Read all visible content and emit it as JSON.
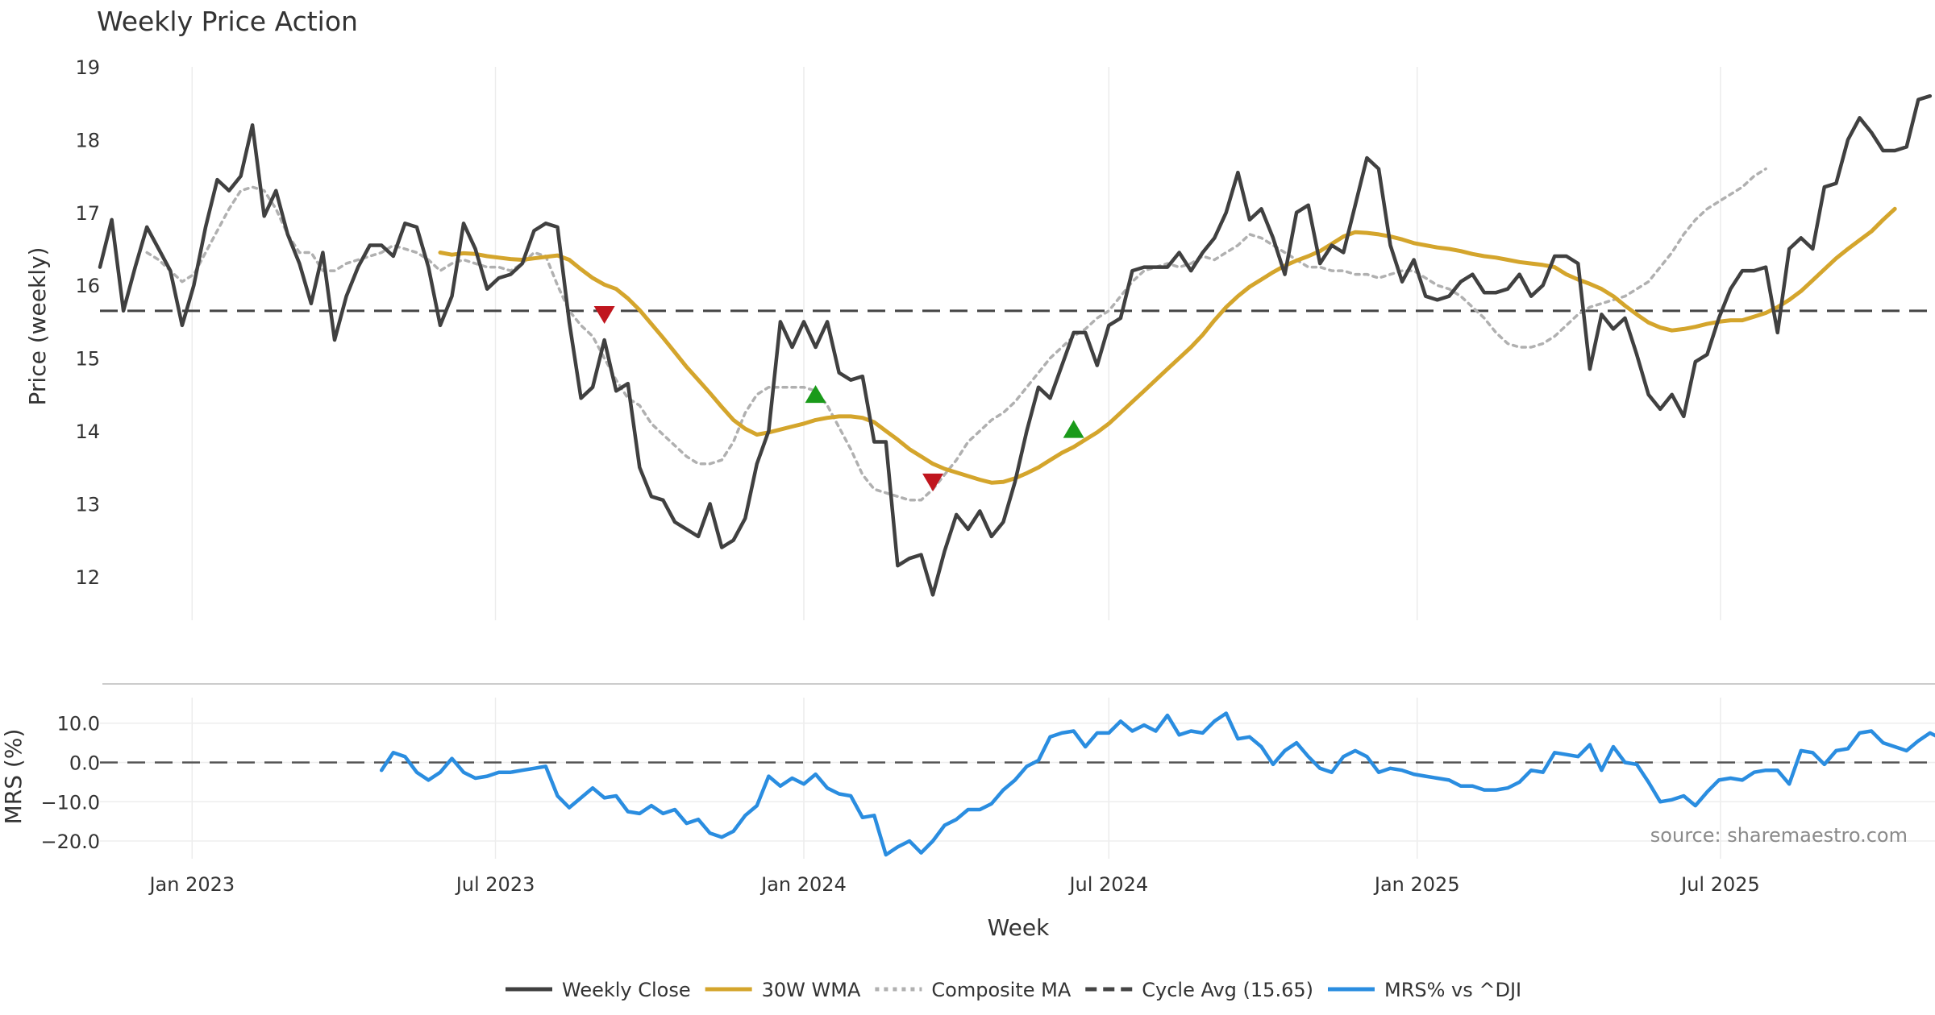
{
  "chart_data": [
    {
      "type": "line",
      "title": "Weekly Price Action",
      "ylabel": "Price (weekly)",
      "ylim": [
        11.4,
        19.0
      ],
      "yticks": [
        12,
        13,
        14,
        15,
        16,
        17,
        18,
        19
      ],
      "x_start": "2022-11-07",
      "x_interval_days": 7,
      "series": [
        {
          "name": "Weekly Close",
          "color": "#404040",
          "style": "solid",
          "values": [
            16.25,
            16.9,
            15.65,
            16.25,
            16.8,
            16.5,
            16.2,
            15.45,
            16.0,
            16.8,
            17.45,
            17.3,
            17.5,
            18.2,
            16.95,
            17.3,
            16.7,
            16.3,
            15.75,
            16.45,
            15.25,
            15.85,
            16.25,
            16.55,
            16.55,
            16.4,
            16.85,
            16.8,
            16.25,
            15.45,
            15.85,
            16.85,
            16.5,
            15.95,
            16.1,
            16.15,
            16.3,
            16.75,
            16.85,
            16.8,
            15.5,
            14.45,
            14.6,
            15.25,
            14.55,
            14.65,
            13.5,
            13.1,
            13.05,
            12.75,
            12.65,
            12.55,
            13.0,
            12.4,
            12.5,
            12.8,
            13.55,
            14.0,
            15.5,
            15.15,
            15.5,
            15.15,
            15.5,
            14.8,
            14.7,
            14.75,
            13.85,
            13.85,
            12.15,
            12.25,
            12.3,
            11.75,
            12.35,
            12.85,
            12.65,
            12.9,
            12.55,
            12.75,
            13.3,
            14.0,
            14.6,
            14.45,
            14.9,
            15.35,
            15.35,
            14.9,
            15.45,
            15.55,
            16.2,
            16.25,
            16.25,
            16.25,
            16.45,
            16.2,
            16.45,
            16.65,
            17.0,
            17.55,
            16.9,
            17.05,
            16.65,
            16.15,
            17.0,
            17.1,
            16.3,
            16.55,
            16.45,
            17.1,
            17.75,
            17.6,
            16.55,
            16.05,
            16.35,
            15.85,
            15.8,
            15.85,
            16.05,
            16.15,
            15.9,
            15.9,
            15.95,
            16.15,
            15.85,
            16.0,
            16.4,
            16.4,
            16.3,
            14.85,
            15.6,
            15.4,
            15.55,
            15.05,
            14.5,
            14.3,
            14.5,
            14.2,
            14.95,
            15.05,
            15.55,
            15.95,
            16.2,
            16.2,
            16.25,
            15.35,
            16.5,
            16.65,
            16.5,
            17.35,
            17.4,
            18.0,
            18.3,
            18.1,
            17.85,
            17.85,
            17.9,
            18.55,
            18.6
          ]
        },
        {
          "name": "30W WMA",
          "color": "#d4a52c",
          "style": "solid",
          "start_index": 29,
          "values": [
            16.45,
            16.42,
            16.44,
            16.43,
            16.4,
            16.38,
            16.36,
            16.35,
            16.37,
            16.39,
            16.41,
            16.35,
            16.22,
            16.1,
            16.01,
            15.95,
            15.82,
            15.66,
            15.47,
            15.28,
            15.08,
            14.88,
            14.7,
            14.52,
            14.33,
            14.15,
            14.03,
            13.95,
            13.98,
            14.02,
            14.06,
            14.1,
            14.15,
            14.18,
            14.2,
            14.2,
            14.18,
            14.12,
            14.0,
            13.88,
            13.75,
            13.65,
            13.55,
            13.48,
            13.43,
            13.38,
            13.33,
            13.29,
            13.3,
            13.35,
            13.42,
            13.5,
            13.6,
            13.7,
            13.78,
            13.88,
            13.98,
            14.1,
            14.25,
            14.4,
            14.55,
            14.7,
            14.85,
            15.0,
            15.15,
            15.32,
            15.52,
            15.7,
            15.85,
            15.98,
            16.08,
            16.18,
            16.27,
            16.34,
            16.4,
            16.47,
            16.57,
            16.67,
            16.73,
            16.72,
            16.7,
            16.67,
            16.63,
            16.58,
            16.55,
            16.52,
            16.5,
            16.47,
            16.43,
            16.4,
            16.38,
            16.35,
            16.32,
            16.3,
            16.28,
            16.25,
            16.15,
            16.08,
            16.02,
            15.95,
            15.85,
            15.72,
            15.6,
            15.49,
            15.42,
            15.38,
            15.4,
            15.43,
            15.47,
            15.5,
            15.52,
            15.52,
            15.57,
            15.62,
            15.7,
            15.8,
            15.92,
            16.07,
            16.22,
            16.37,
            16.5,
            16.62,
            16.74,
            16.9,
            17.05
          ]
        },
        {
          "name": "Composite MA",
          "color": "#b0b0b0",
          "style": "dotted",
          "start_index": 4,
          "values": [
            16.45,
            16.35,
            16.2,
            16.05,
            16.15,
            16.45,
            16.75,
            17.05,
            17.3,
            17.35,
            17.3,
            17.05,
            16.7,
            16.45,
            16.45,
            16.2,
            16.2,
            16.3,
            16.35,
            16.4,
            16.45,
            16.55,
            16.5,
            16.45,
            16.35,
            16.2,
            16.3,
            16.35,
            16.3,
            16.25,
            16.25,
            16.2,
            16.3,
            16.45,
            16.4,
            16.0,
            15.65,
            15.45,
            15.3,
            15.0,
            14.7,
            14.45,
            14.35,
            14.1,
            13.95,
            13.8,
            13.65,
            13.55,
            13.55,
            13.6,
            13.85,
            14.25,
            14.5,
            14.6,
            14.6,
            14.6,
            14.6,
            14.55,
            14.35,
            14.05,
            13.75,
            13.4,
            13.2,
            13.15,
            13.1,
            13.05,
            13.05,
            13.2,
            13.4,
            13.6,
            13.85,
            14.0,
            14.15,
            14.25,
            14.4,
            14.6,
            14.8,
            15.0,
            15.15,
            15.3,
            15.4,
            15.55,
            15.65,
            15.85,
            16.05,
            16.2,
            16.25,
            16.3,
            16.25,
            16.3,
            16.4,
            16.35,
            16.45,
            16.55,
            16.7,
            16.65,
            16.55,
            16.45,
            16.35,
            16.25,
            16.25,
            16.2,
            16.2,
            16.15,
            16.15,
            16.1,
            16.15,
            16.2,
            16.2,
            16.1,
            16.0,
            15.95,
            15.85,
            15.7,
            15.55,
            15.35,
            15.2,
            15.15,
            15.15,
            15.2,
            15.3,
            15.45,
            15.6,
            15.7,
            15.75,
            15.8,
            15.85,
            15.95,
            16.05,
            16.25,
            16.45,
            16.7,
            16.9,
            17.05,
            17.15,
            17.25,
            17.35,
            17.5,
            17.6
          ]
        }
      ],
      "hline": {
        "name": "Cycle Avg (15.65)",
        "value": 15.65,
        "color": "#444444",
        "style": "dashed"
      },
      "markers": [
        {
          "kind": "sell",
          "index": 43,
          "value": 15.6,
          "color": "#c0161e"
        },
        {
          "kind": "buy",
          "index": 61,
          "value": 14.5,
          "color": "#1a9a1a"
        },
        {
          "kind": "sell",
          "index": 71,
          "value": 13.3,
          "color": "#c0161e"
        },
        {
          "kind": "buy",
          "index": 83,
          "value": 14.02,
          "color": "#1a9a1a"
        }
      ]
    },
    {
      "type": "line",
      "ylabel": "MRS (%)",
      "xlabel": "Week",
      "ylim": [
        -24.5,
        16.5
      ],
      "yticks": [
        10,
        0,
        -10,
        -20
      ],
      "ytick_labels": [
        "10.0",
        "0.0",
        "−10.0",
        "−20.0"
      ],
      "xtick_labels": [
        "Jan 2023",
        "Jul 2023",
        "Jan 2024",
        "Jul 2024",
        "Jan 2025",
        "Jul 2025"
      ],
      "xtick_dates": [
        "2023-01-01",
        "2023-07-01",
        "2024-01-01",
        "2024-07-01",
        "2025-01-01",
        "2025-07-01"
      ],
      "series": [
        {
          "name": "MRS% vs ^DJI",
          "color": "#2a8de0",
          "style": "solid",
          "start_index": 24,
          "values": [
            -2.0,
            2.5,
            1.5,
            -2.5,
            -4.5,
            -2.5,
            1.0,
            -2.5,
            -4.0,
            -3.5,
            -2.5,
            -2.5,
            -2.0,
            -1.5,
            -1.0,
            -8.5,
            -11.5,
            -9.0,
            -6.5,
            -9.0,
            -8.5,
            -12.5,
            -13.0,
            -11.0,
            -13.0,
            -12.0,
            -15.5,
            -14.5,
            -18.0,
            -19.0,
            -17.5,
            -13.5,
            -11.0,
            -3.5,
            -6.0,
            -4.0,
            -5.5,
            -3.0,
            -6.5,
            -8.0,
            -8.5,
            -14.0,
            -13.5,
            -23.5,
            -21.5,
            -20.0,
            -23.0,
            -20.0,
            -16.0,
            -14.5,
            -12.0,
            -12.0,
            -10.5,
            -7.0,
            -4.5,
            -1.0,
            0.5,
            6.5,
            7.5,
            8.0,
            4.0,
            7.5,
            7.5,
            10.5,
            8.0,
            9.5,
            8.0,
            12.0,
            7.0,
            8.0,
            7.5,
            10.5,
            12.5,
            6.0,
            6.5,
            4.0,
            -0.5,
            3.0,
            5.0,
            1.5,
            -1.5,
            -2.5,
            1.5,
            3.0,
            1.5,
            -2.5,
            -1.5,
            -2.0,
            -3.0,
            -3.5,
            -4.0,
            -4.5,
            -6.0,
            -6.0,
            -7.0,
            -7.0,
            -6.5,
            -5.0,
            -2.0,
            -2.5,
            2.5,
            2.0,
            1.5,
            4.5,
            -2.0,
            4.0,
            0.0,
            -0.5,
            -5.0,
            -10.0,
            -9.5,
            -8.5,
            -11.0,
            -7.5,
            -4.5,
            -4.0,
            -4.5,
            -2.5,
            -2.0,
            -2.0,
            -5.5,
            3.0,
            2.5,
            -0.5,
            3.0,
            3.5,
            7.5,
            8.0,
            5.0,
            4.0,
            3.0,
            5.5,
            7.5,
            6.0
          ]
        }
      ],
      "hline": {
        "value": 0,
        "color": "#555555",
        "style": "dashed"
      }
    }
  ],
  "legend": {
    "position": "bottom",
    "items": [
      {
        "label": "Weekly Close",
        "color": "#404040",
        "style": "solid"
      },
      {
        "label": "30W WMA",
        "color": "#d4a52c",
        "style": "solid"
      },
      {
        "label": "Composite MA",
        "color": "#b0b0b0",
        "style": "dotted"
      },
      {
        "label": "Cycle Avg (15.65)",
        "color": "#444444",
        "style": "dashed"
      },
      {
        "label": "MRS% vs ^DJI",
        "color": "#2a8de0",
        "style": "solid"
      }
    ]
  },
  "source_text": "source: sharemaestro.com"
}
